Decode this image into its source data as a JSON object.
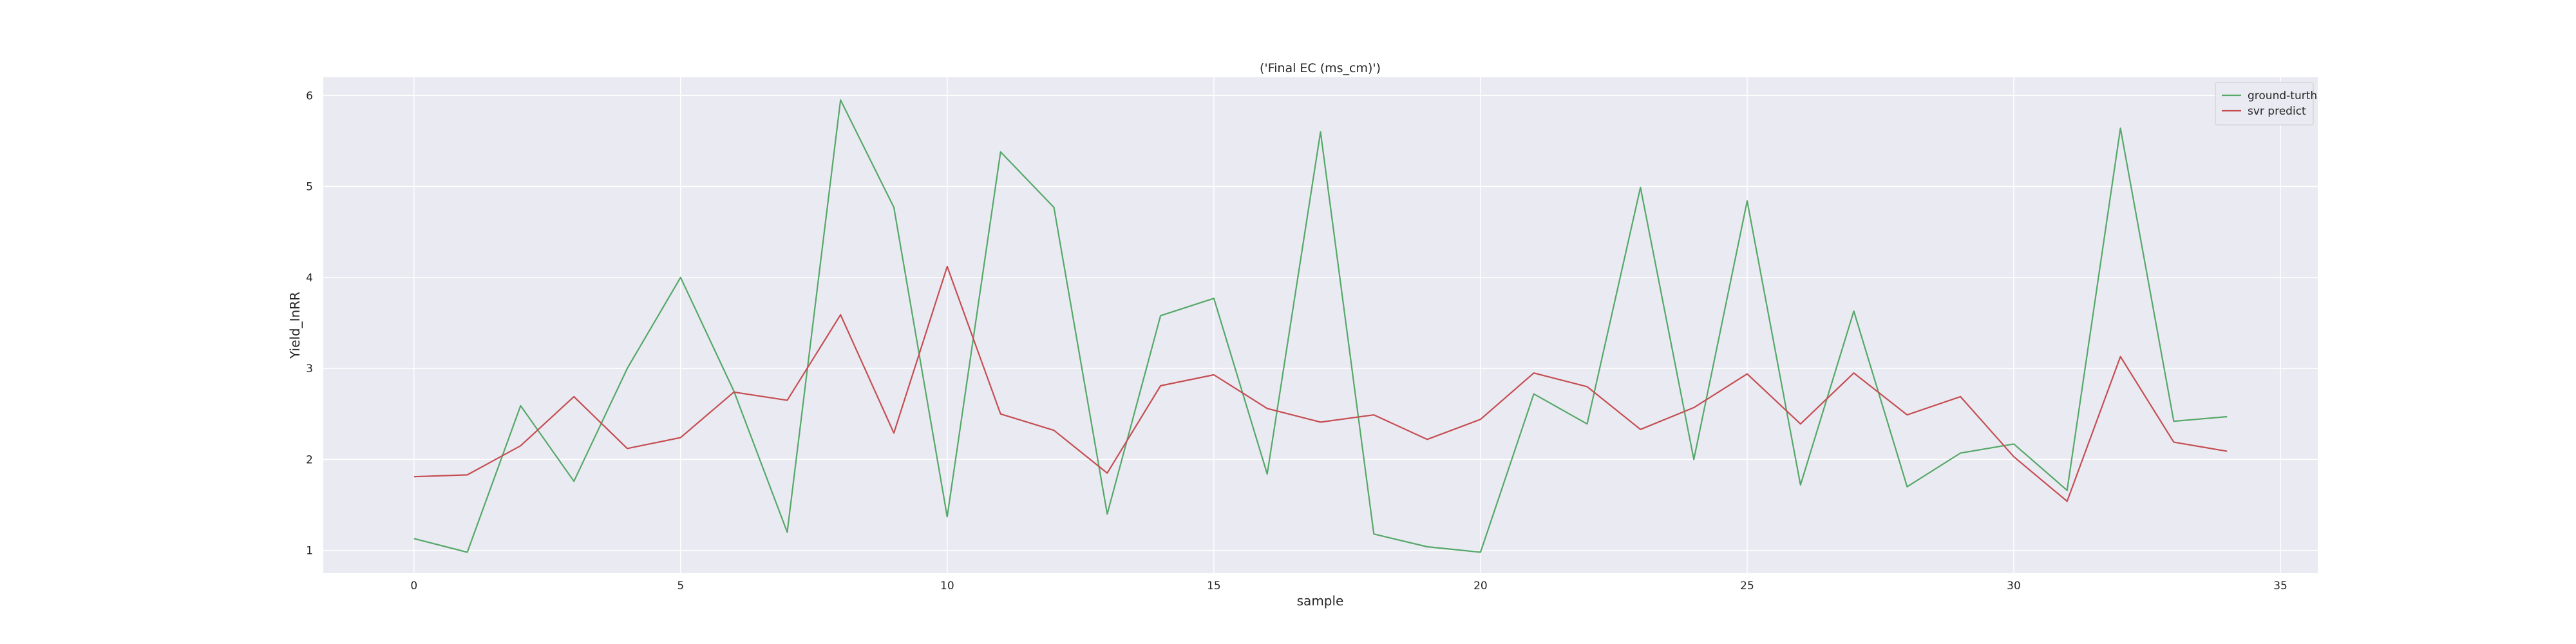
{
  "chart_data": {
    "type": "line",
    "title": "('Final EC (ms_cm)')",
    "xlabel": "sample",
    "ylabel": "Yield_InRR",
    "xlim": [
      -1.7,
      35.7
    ],
    "ylim": [
      0.75,
      6.2
    ],
    "xticks": [
      0,
      5,
      10,
      15,
      20,
      25,
      30,
      35
    ],
    "yticks": [
      1,
      2,
      3,
      4,
      5,
      6
    ],
    "grid": true,
    "legend_position": "top-right",
    "x": [
      0,
      1,
      2,
      3,
      4,
      5,
      6,
      7,
      8,
      9,
      10,
      11,
      12,
      13,
      14,
      15,
      16,
      17,
      18,
      19,
      20,
      21,
      22,
      23,
      24,
      25,
      26,
      27,
      28,
      29,
      30,
      31,
      32,
      33,
      34
    ],
    "series": [
      {
        "name": "ground-turth",
        "color": "#55a868",
        "values": [
          1.13,
          0.98,
          2.59,
          1.76,
          3.0,
          4.0,
          2.75,
          1.2,
          5.95,
          4.77,
          1.37,
          5.38,
          4.77,
          1.4,
          3.58,
          3.77,
          1.84,
          5.6,
          1.18,
          1.04,
          0.98,
          2.72,
          2.39,
          4.99,
          2.0,
          4.84,
          1.72,
          3.63,
          1.7,
          2.07,
          2.17,
          1.66,
          5.64,
          2.42,
          2.47
        ]
      },
      {
        "name": "svr predict",
        "color": "#c44e52",
        "values": [
          1.81,
          1.83,
          2.15,
          2.69,
          2.12,
          2.24,
          2.74,
          2.65,
          3.59,
          2.29,
          4.12,
          2.5,
          2.32,
          1.85,
          2.81,
          2.93,
          2.56,
          2.41,
          2.49,
          2.22,
          2.44,
          2.95,
          2.8,
          2.33,
          2.57,
          2.94,
          2.39,
          2.95,
          2.49,
          2.69,
          2.03,
          1.54,
          3.13,
          2.19,
          2.09
        ]
      }
    ]
  }
}
